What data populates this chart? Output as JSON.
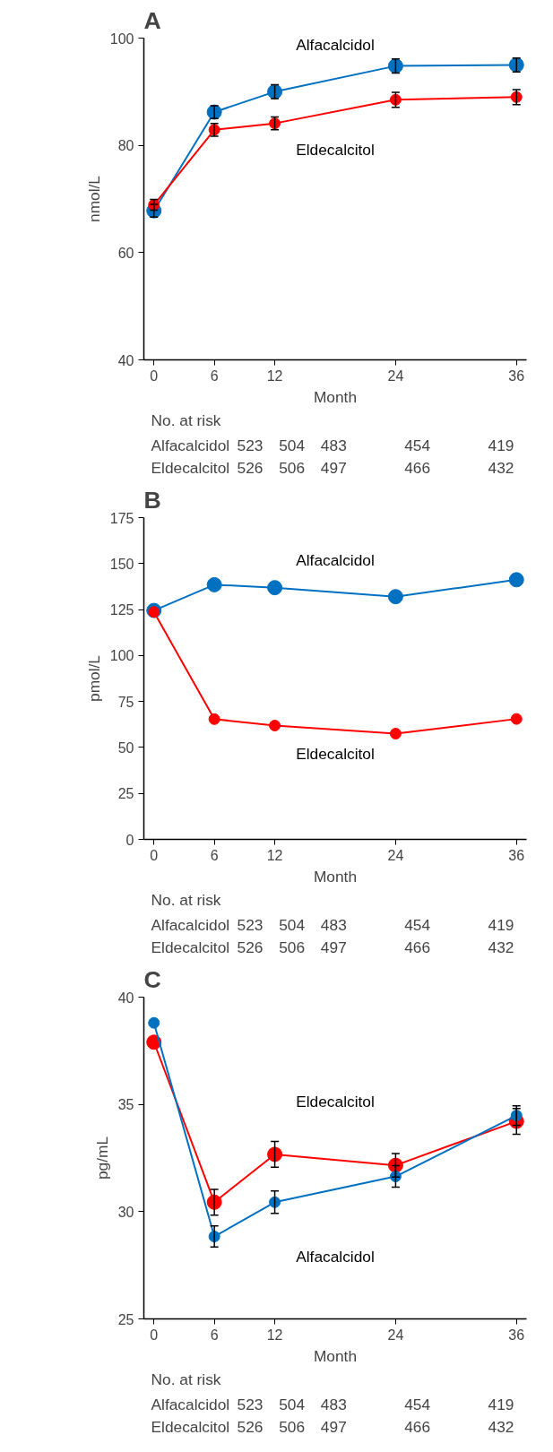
{
  "chart_data": [
    {
      "type": "line",
      "title": "A",
      "xlabel": "Month",
      "ylabel": "nmol/L",
      "x": [
        0,
        6,
        12,
        24,
        36
      ],
      "xlim": [
        -1,
        37
      ],
      "xticks": [
        0,
        6,
        12,
        24,
        36
      ],
      "ylim": [
        40,
        100
      ],
      "yticks": [
        40,
        60,
        80,
        100
      ],
      "grid": false,
      "legend": false,
      "marker": "circle",
      "line_style": "solid",
      "series": [
        {
          "name": "Alfacalcidol",
          "color": "#0070c0",
          "values": [
            67.8,
            86.2,
            90.0,
            94.8,
            95.0
          ],
          "errors": [
            1.2,
            1.2,
            1.3,
            1.3,
            1.3
          ]
        },
        {
          "name": "Eldecalcitol",
          "color": "#ff0000",
          "values": [
            68.9,
            82.9,
            84.1,
            88.5,
            89.0
          ],
          "errors": [
            1.0,
            1.2,
            1.2,
            1.4,
            1.4
          ]
        }
      ],
      "annotations": [
        "No. at risk",
        "Alfacalcidol",
        "523",
        "504",
        "483",
        "454",
        "419",
        "Eldecalcitol",
        "526",
        "506",
        "497",
        "466",
        "432"
      ]
    },
    {
      "type": "line",
      "title": "B",
      "xlabel": "Month",
      "ylabel": "pmol/L",
      "x": [
        0,
        6,
        12,
        24,
        36
      ],
      "xlim": [
        -1,
        37
      ],
      "xticks": [
        0,
        6,
        12,
        24,
        36
      ],
      "ylim": [
        0,
        175
      ],
      "yticks": [
        0,
        25,
        50,
        75,
        100,
        125,
        150,
        175
      ],
      "grid": false,
      "legend": false,
      "marker": "circle",
      "line_style": "solid",
      "series": [
        {
          "name": "Alfacalcidol",
          "color": "#0070c0",
          "values": [
            124.5,
            138.5,
            136.9,
            132.0,
            141.2
          ]
        },
        {
          "name": "Eldecalcitol",
          "color": "#ff0000",
          "values": [
            123.7,
            65.4,
            61.9,
            57.5,
            65.5
          ]
        }
      ],
      "annotations": [
        "No. at risk",
        "Alfacalcidol",
        "523",
        "504",
        "483",
        "454",
        "419",
        "Eldecalcitol",
        "526",
        "506",
        "497",
        "466",
        "432"
      ]
    },
    {
      "type": "line",
      "title": "C",
      "xlabel": "Month",
      "ylabel": "pg/mL",
      "x": [
        0,
        6,
        12,
        24,
        36
      ],
      "xlim": [
        -1,
        37
      ],
      "xticks": [
        0,
        6,
        12,
        24,
        36
      ],
      "ylim": [
        25,
        40
      ],
      "yticks": [
        25,
        30,
        35,
        40
      ],
      "grid": false,
      "legend": false,
      "marker": "circle",
      "line_style": "solid",
      "series": [
        {
          "name": "Eldecalcitol",
          "color": "#ff0000",
          "values": [
            37.9,
            30.44,
            32.67,
            32.16,
            34.21
          ],
          "errors": [
            null,
            0.6,
            0.6,
            0.55,
            0.6
          ]
        },
        {
          "name": "Alfacalcidol",
          "color": "#0070c0",
          "values": [
            38.8,
            28.84,
            30.44,
            31.64,
            34.48
          ],
          "errors": [
            null,
            0.49,
            0.52,
            0.5,
            0.45
          ]
        }
      ],
      "annotations": [
        "No. at risk",
        "Alfacalcidol",
        "523",
        "504",
        "483",
        "454",
        "419",
        "Eldecalcitol",
        "526",
        "506",
        "497",
        "466",
        "432"
      ]
    }
  ]
}
